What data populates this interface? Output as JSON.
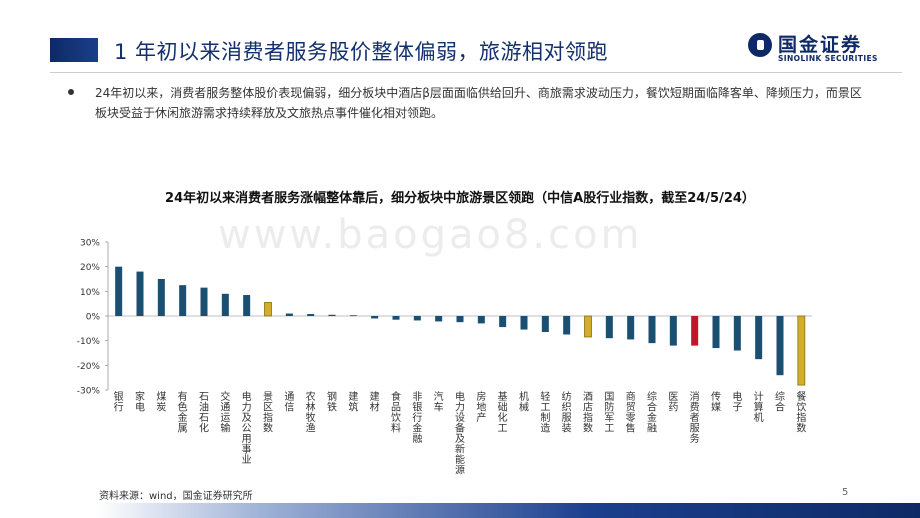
{
  "header": {
    "title": "1 年初以来消费者服务股价整体偏弱，旅游相对领跑",
    "logo_cn": "国金证券",
    "logo_en": "SINOLINK SECURITIES"
  },
  "bullet": {
    "text": "24年初以来，消费者服务整体股价表现偏弱，细分板块中酒店β层面面临供给回升、商旅需求波动压力，餐饮短期面临降客单、降频压力，而景区板块受益于休闲旅游需求持续释放及文旅热点事件催化相对领跑。"
  },
  "watermark": "www.baogao8.com",
  "footer": {
    "source": "资料来源：wind，国金证券研究所",
    "page": "5"
  },
  "colors": {
    "default_bar": "#1b4f72",
    "highlight_bar": "#d4ad2c",
    "consumer_services_bar": "#c0162b"
  },
  "chart_data": {
    "type": "bar",
    "title": "24年初以来消费者服务涨幅整体靠后，细分板块中旅游景区领跑（中信A股行业指数，截至24/5/24）",
    "xlabel": "",
    "ylabel": "",
    "ylim": [
      -0.3,
      0.3
    ],
    "y_ticks": [
      0.3,
      0.2,
      0.1,
      0.0,
      -0.1,
      -0.2,
      -0.3
    ],
    "y_tick_labels": [
      "30%",
      "20%",
      "10%",
      "0%",
      "-10%",
      "-20%",
      "-30%"
    ],
    "grid": false,
    "legend": "none",
    "categories": [
      "银行",
      "家电",
      "煤炭",
      "有色金属",
      "石油石化",
      "交通运输",
      "电力及公用事业",
      "景区指数",
      "通信",
      "农林牧渔",
      "钢铁",
      "建筑",
      "建材",
      "食品饮料",
      "非银行金融",
      "汽车",
      "电力设备及新能源",
      "房地产",
      "基础化工",
      "机械",
      "轻工制造",
      "纺织服装",
      "酒店指数",
      "国防军工",
      "商贸零售",
      "综合金融",
      "医药",
      "消费者服务",
      "传媒",
      "电子",
      "计算机",
      "综合",
      "餐饮指数"
    ],
    "values": [
      0.2,
      0.18,
      0.15,
      0.125,
      0.115,
      0.09,
      0.085,
      0.055,
      0.01,
      0.008,
      0.005,
      0.003,
      -0.01,
      -0.015,
      -0.018,
      -0.022,
      -0.025,
      -0.03,
      -0.045,
      -0.055,
      -0.065,
      -0.075,
      -0.085,
      -0.09,
      -0.095,
      -0.11,
      -0.12,
      -0.12,
      -0.13,
      -0.14,
      -0.175,
      -0.24,
      -0.28
    ],
    "highlight": [
      "景区指数",
      "酒店指数",
      "餐饮指数"
    ],
    "emphasis": [
      "消费者服务"
    ]
  }
}
